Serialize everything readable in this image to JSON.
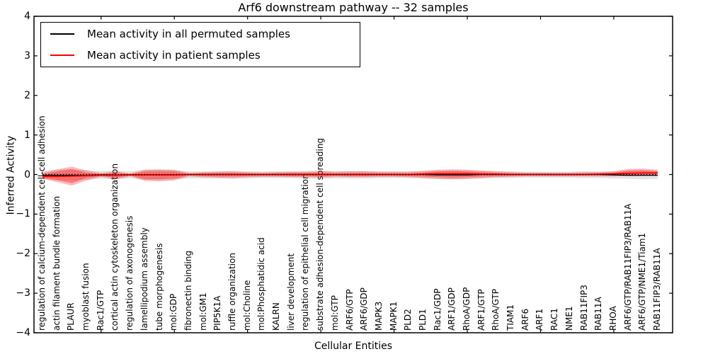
{
  "title": "Arf6 downstream pathway -- 32 samples",
  "legend": {
    "items": [
      {
        "label": "Mean activity in all permuted samples",
        "color": "#000000"
      },
      {
        "label": "Mean activity in patient samples",
        "color": "#ff0000"
      }
    ]
  },
  "chart_data": {
    "type": "line",
    "title": "Arf6 downstream pathway -- 32 samples",
    "xlabel": "Cellular Entities",
    "ylabel": "Inferred Activity",
    "ylim": [
      -4,
      4
    ],
    "yticks": [
      4,
      3,
      2,
      1,
      0,
      -1,
      -2,
      -3,
      -4
    ],
    "grid": false,
    "legend_position": "upper left",
    "zero_line": {
      "y": 0,
      "style": "dotted",
      "color": "#000000"
    },
    "categories": [
      "regulation of calcium-dependent cell-cell adhesion",
      "actin filament bundle formation",
      "PLAUR",
      "myoblast fusion",
      "Rac1/GTP",
      "cortical actin cytoskeleton organization",
      "regulation of axonogenesis",
      "lamellipodium assembly",
      "tube morphogenesis",
      "mol:GDP",
      "fibronectin binding",
      "mol:GM1",
      "PIP5K1A",
      "ruffle organization",
      "mol:Choline",
      "mol:Phosphatidic acid",
      "KALRN",
      "liver development",
      "regulation of epithelial cell migration",
      "substrate adhesion-dependent cell spreading",
      "mol:GTP",
      "ARF6/GTP",
      "ARF6/GDP",
      "MAPK3",
      "MAPK1",
      "PLD2",
      "PLD1",
      "Rac1/GDP",
      "ARF1/GDP",
      "RhoA/GDP",
      "ARF1/GTP",
      "RhoA/GTP",
      "TIAM1",
      "ARF6",
      "ARF1",
      "RAC1",
      "NME1",
      "RAB11FIP3",
      "RAB11A",
      "RHOA",
      "ARF6/GTP/RAB11FIP3/RAB11A",
      "ARF6/GTP/NME1/Tiam1",
      "RAB11FIP3/RAB11A"
    ],
    "series": [
      {
        "name": "Mean activity in all permuted samples",
        "color": "#000000",
        "values": [
          -0.02,
          -0.02,
          -0.02,
          -0.02,
          -0.01,
          -0.01,
          -0.01,
          -0.01,
          -0.01,
          -0.01,
          0,
          0,
          0,
          0,
          0,
          0,
          0,
          0,
          0,
          0,
          0,
          0,
          0,
          0,
          0,
          0,
          0,
          -0.01,
          -0.01,
          -0.01,
          0,
          0,
          0,
          0,
          0,
          0,
          0,
          0,
          0,
          -0.01,
          -0.02,
          -0.02,
          -0.02
        ]
      },
      {
        "name": "Mean activity in patient samples",
        "color": "#ff0000",
        "values": [
          -0.05,
          -0.05,
          -0.04,
          -0.03,
          -0.02,
          -0.02,
          -0.01,
          -0.01,
          -0.01,
          -0.01,
          0,
          0,
          0,
          0,
          0,
          0,
          0,
          0,
          0,
          0,
          0,
          0,
          0,
          0,
          0,
          0,
          0.01,
          0.02,
          0.02,
          0.02,
          0.01,
          0.01,
          0,
          0,
          0,
          0,
          0,
          0,
          0.01,
          0.02,
          0.03,
          0.04,
          0.04
        ]
      }
    ],
    "bands": [
      {
        "name": "permuted-samples-range",
        "color": "rgba(100,100,100,0.18)",
        "upper": [
          0.09,
          0.12,
          0.13,
          0.11,
          0.09,
          0.1,
          0.08,
          0.12,
          0.12,
          0.11,
          0.08,
          0.08,
          0.09,
          0.09,
          0.08,
          0.08,
          0.08,
          0.08,
          0.09,
          0.1,
          0.09,
          0.09,
          0.09,
          0.08,
          0.08,
          0.08,
          0.09,
          0.1,
          0.11,
          0.1,
          0.09,
          0.08,
          0.08,
          0.07,
          0.07,
          0.07,
          0.07,
          0.08,
          0.08,
          0.08,
          0.1,
          0.1,
          0.09
        ],
        "lower": [
          -0.12,
          -0.15,
          -0.16,
          -0.13,
          -0.11,
          -0.12,
          -0.1,
          -0.13,
          -0.14,
          -0.12,
          -0.1,
          -0.1,
          -0.1,
          -0.11,
          -0.1,
          -0.09,
          -0.09,
          -0.09,
          -0.1,
          -0.11,
          -0.1,
          -0.1,
          -0.1,
          -0.09,
          -0.09,
          -0.09,
          -0.1,
          -0.11,
          -0.12,
          -0.11,
          -0.1,
          -0.09,
          -0.09,
          -0.08,
          -0.08,
          -0.08,
          -0.08,
          -0.09,
          -0.09,
          -0.1,
          -0.11,
          -0.12,
          -0.11
        ]
      },
      {
        "name": "patient-samples-outer-band",
        "color": "rgba(255,0,0,0.28)",
        "upper": [
          0.05,
          0.13,
          0.2,
          0.1,
          0.04,
          0.08,
          0.03,
          0.12,
          0.13,
          0.12,
          0.04,
          0.06,
          0.07,
          0.08,
          0.06,
          0.05,
          0.06,
          0.07,
          0.07,
          0.08,
          0.07,
          0.08,
          0.08,
          0.07,
          0.07,
          0.07,
          0.09,
          0.12,
          0.13,
          0.12,
          0.1,
          0.08,
          0.06,
          0.05,
          0.05,
          0.05,
          0.05,
          0.06,
          0.06,
          0.08,
          0.14,
          0.15,
          0.12
        ],
        "lower": [
          -0.1,
          -0.19,
          -0.28,
          -0.15,
          -0.06,
          -0.12,
          -0.05,
          -0.16,
          -0.17,
          -0.15,
          -0.05,
          -0.07,
          -0.08,
          -0.09,
          -0.07,
          -0.06,
          -0.06,
          -0.07,
          -0.07,
          -0.08,
          -0.06,
          -0.07,
          -0.07,
          -0.06,
          -0.06,
          -0.07,
          -0.09,
          -0.11,
          -0.12,
          -0.11,
          -0.09,
          -0.07,
          -0.06,
          -0.05,
          -0.05,
          -0.05,
          -0.05,
          -0.05,
          -0.05,
          -0.05,
          -0.04,
          -0.03,
          -0.02
        ]
      },
      {
        "name": "patient-samples-inner-band",
        "color": "rgba(255,0,0,0.30)",
        "upper": [
          0.01,
          0.08,
          0.14,
          0.05,
          0.01,
          0.04,
          0.01,
          0.08,
          0.09,
          0.08,
          0.01,
          0.03,
          0.04,
          0.04,
          0.03,
          0.02,
          0.03,
          0.04,
          0.04,
          0.05,
          0.03,
          0.04,
          0.04,
          0.03,
          0.03,
          0.03,
          0.05,
          0.08,
          0.09,
          0.08,
          0.06,
          0.04,
          0.03,
          0.02,
          0.02,
          0.02,
          0.02,
          0.03,
          0.03,
          0.04,
          0.1,
          0.11,
          0.08
        ],
        "lower": [
          -0.08,
          -0.14,
          -0.22,
          -0.09,
          -0.03,
          -0.08,
          -0.02,
          -0.12,
          -0.12,
          -0.1,
          -0.02,
          -0.04,
          -0.05,
          -0.05,
          -0.04,
          -0.03,
          -0.03,
          -0.04,
          -0.04,
          -0.05,
          -0.03,
          -0.04,
          -0.04,
          -0.03,
          -0.03,
          -0.04,
          -0.05,
          -0.07,
          -0.08,
          -0.07,
          -0.05,
          -0.04,
          -0.03,
          -0.02,
          -0.02,
          -0.02,
          -0.02,
          -0.02,
          -0.02,
          -0.02,
          -0.01,
          0.0,
          0.01
        ]
      }
    ]
  }
}
